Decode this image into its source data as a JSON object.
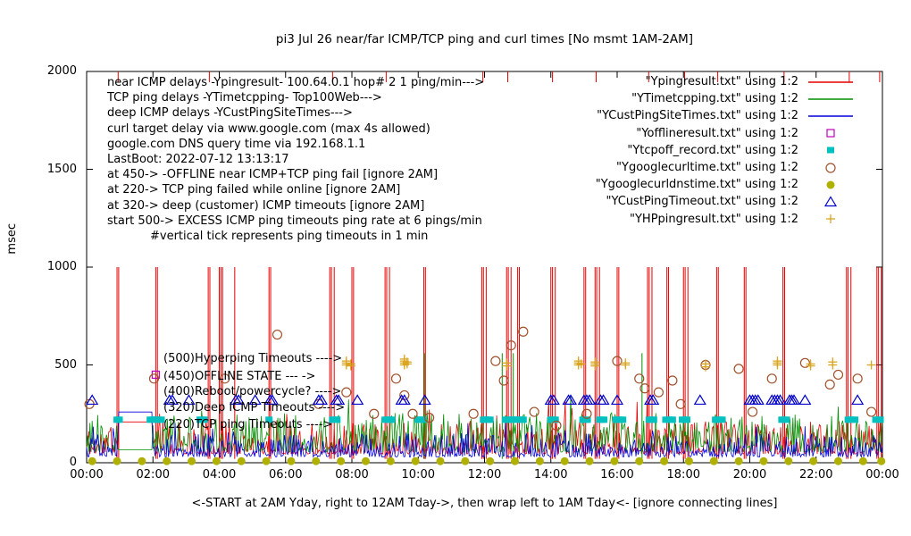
{
  "chart_data": {
    "type": "line",
    "title": "pi3 Jul 26  near/far ICMP/TCP ping and curl times [No msmt 1AM-2AM]",
    "ylabel": "msec",
    "xlabel": "<-START at 2AM Yday, right to 12AM Tday->, then wrap left to 1AM Tday<- [ignore connecting lines]",
    "ylim": [
      0,
      2000
    ],
    "x_range_minutes": [
      0,
      1440
    ],
    "grid": "off",
    "legend_position": "top-right",
    "y_tick_labels": [
      "0",
      "500",
      "1000",
      "1500",
      "2000"
    ],
    "x_tick_labels": [
      "00:00",
      "02:00",
      "04:00",
      "06:00",
      "08:00",
      "10:00",
      "12:00",
      "14:00",
      "16:00",
      "18:00",
      "20:00",
      "22:00",
      "00:00"
    ],
    "annotations": [
      "near ICMP delays -Ypingresult- 100.64.0.1 hop# 2 1 ping/min--->",
      "TCP ping delays -YTimetcpping- Top100Web--->",
      "deep ICMP delays -YCustPingSiteTimes--->",
      "curl target delay via www.google.com (max 4s allowed)",
      "google.com DNS query time via 192.168.1.1",
      "LastBoot: 2022-07-12 13:13:17",
      "at 450-> -OFFLINE near ICMP+TCP ping fail [ignore 2AM]",
      "at 220-> TCP ping failed while online [ignore 2AM]",
      "at 320-> deep (customer) ICMP timeouts [ignore 2AM]",
      "start 500-> EXCESS ICMP ping timeouts ping rate at 6 pings/min",
      "#vertical tick represents ping timeouts in 1 min"
    ],
    "level_labels": [
      "(500)Hyperping Timeouts ---->",
      "(450)OFFLINE STATE --- ->",
      "(400)Reboot/powercycle? ---->",
      "(320)Deep ICMP Timeouts ---->",
      "(220)TCP ping Timeouts ---->"
    ],
    "no_measurement_window_minutes": [
      60,
      120
    ],
    "series": [
      {
        "name": "\"Ypingresult.txt\" using 1:2",
        "color": "#e60000",
        "style": "line",
        "gen": {
          "seed": 11,
          "base": 45,
          "noise": 170,
          "extra": 120,
          "step": 2
        },
        "spike_value": 1000,
        "spike_minutes": [
          55,
          58,
          125,
          128,
          220,
          223,
          240,
          243,
          246,
          268,
          330,
          333,
          440,
          443,
          448,
          480,
          483,
          540,
          543,
          548,
          610,
          613,
          715,
          718,
          723,
          760,
          763,
          768,
          780,
          783,
          840,
          843,
          848,
          900,
          903,
          920,
          923,
          928,
          960,
          963,
          1015,
          1018,
          1023,
          1050,
          1053,
          1080,
          1083,
          1088,
          1140,
          1143,
          1190,
          1193,
          1260,
          1263,
          1375,
          1378,
          1383,
          1430,
          1433,
          1438
        ],
        "top_tick_minutes": [
          57,
          222,
          445,
          542,
          717,
          762,
          843,
          922,
          1017,
          1082,
          1142,
          1262,
          1380,
          1435
        ]
      },
      {
        "name": "\"YTimetcpping.txt\" using 1:2",
        "color": "#009000",
        "style": "line",
        "gen": {
          "seed": 77,
          "base": 55,
          "noise": 200,
          "extra": 130,
          "step": 2
        },
        "spike_value": 560,
        "spike_minutes": [
          612,
          752,
          772,
          1005
        ]
      },
      {
        "name": "\"YCustPingSiteTimes.txt\" using 1:2",
        "color": "#0000dd",
        "style": "line",
        "gen": {
          "seed": 5,
          "base": 30,
          "noise": 120,
          "extra": 110,
          "step": 2
        }
      },
      {
        "name": "\"Yofflineresult.txt\" using 1:2",
        "color": "#c000c0",
        "style": "square-open",
        "points": [
          [
            125,
            450
          ]
        ]
      },
      {
        "name": "\"Ytcpoff_record.txt\" using 1:2",
        "color": "#00c0c0",
        "style": "square-filled",
        "level": 220,
        "minutes": [
          55,
          59,
          115,
          119,
          123,
          127,
          131,
          135,
          205,
          209,
          213,
          330,
          445,
          449,
          453,
          540,
          544,
          548,
          552,
          600,
          604,
          608,
          718,
          722,
          726,
          730,
          758,
          762,
          766,
          770,
          774,
          778,
          782,
          786,
          790,
          840,
          844,
          848,
          898,
          902,
          906,
          928,
          932,
          936,
          958,
          962,
          966,
          970,
          1018,
          1022,
          1026,
          1048,
          1052,
          1056,
          1060,
          1078,
          1082,
          1086,
          1138,
          1142,
          1146,
          1150,
          1258,
          1262,
          1266,
          1378,
          1382,
          1386,
          1390,
          1428,
          1432,
          1436
        ]
      },
      {
        "name": "\"Ygooglecurltime.txt\" using 1:2",
        "color": "#a0522d",
        "style": "circle-open",
        "points": [
          [
            5,
            300
          ],
          [
            122,
            430
          ],
          [
            250,
            430
          ],
          [
            345,
            655
          ],
          [
            420,
            300
          ],
          [
            470,
            360
          ],
          [
            520,
            250
          ],
          [
            560,
            430
          ],
          [
            575,
            345
          ],
          [
            590,
            250
          ],
          [
            620,
            230
          ],
          [
            700,
            250
          ],
          [
            740,
            520
          ],
          [
            755,
            420
          ],
          [
            768,
            600
          ],
          [
            790,
            670
          ],
          [
            810,
            260
          ],
          [
            850,
            190
          ],
          [
            905,
            250
          ],
          [
            960,
            520
          ],
          [
            1000,
            430
          ],
          [
            1010,
            380
          ],
          [
            1035,
            360
          ],
          [
            1060,
            420
          ],
          [
            1075,
            300
          ],
          [
            1120,
            500
          ],
          [
            1180,
            480
          ],
          [
            1205,
            260
          ],
          [
            1240,
            430
          ],
          [
            1300,
            510
          ],
          [
            1345,
            400
          ],
          [
            1360,
            450
          ],
          [
            1395,
            430
          ],
          [
            1420,
            260
          ]
        ]
      },
      {
        "name": "\"Ygooglecurldnstime.txt\" using 1:2",
        "color": "#b0b000",
        "style": "circle-filled",
        "level": 8,
        "minutes": [
          10,
          55,
          100,
          145,
          190,
          235,
          280,
          325,
          370,
          415,
          460,
          505,
          550,
          595,
          640,
          685,
          730,
          775,
          820,
          865,
          910,
          955,
          1000,
          1045,
          1090,
          1135,
          1180,
          1225,
          1270,
          1315,
          1360,
          1405,
          1438
        ]
      },
      {
        "name": "\"YCustPingTimeout.txt\" using 1:2",
        "color": "#0000cc",
        "style": "triangle-open",
        "level": 320,
        "minutes": [
          10,
          150,
          155,
          185,
          270,
          275,
          305,
          332,
          336,
          420,
          425,
          452,
          456,
          490,
          570,
          575,
          612,
          840,
          845,
          872,
          876,
          900,
          905,
          910,
          930,
          935,
          960,
          1020,
          1025,
          1110,
          1200,
          1205,
          1210,
          1215,
          1240,
          1245,
          1250,
          1255,
          1272,
          1276,
          1280,
          1300,
          1395
        ]
      },
      {
        "name": "\"YHPpingresult.txt\" using 1:2",
        "color": "#daa520",
        "style": "plus",
        "points": [
          [
            470,
            500
          ],
          [
            470,
            510
          ],
          [
            470,
            520
          ],
          [
            478,
            495
          ],
          [
            478,
            505
          ],
          [
            575,
            500
          ],
          [
            575,
            510
          ],
          [
            575,
            520
          ],
          [
            575,
            530
          ],
          [
            580,
            505
          ],
          [
            580,
            515
          ],
          [
            760,
            495
          ],
          [
            760,
            510
          ],
          [
            890,
            500
          ],
          [
            890,
            510
          ],
          [
            890,
            520
          ],
          [
            895,
            505
          ],
          [
            920,
            495
          ],
          [
            920,
            505
          ],
          [
            920,
            515
          ],
          [
            975,
            500
          ],
          [
            975,
            510
          ],
          [
            1120,
            490
          ],
          [
            1120,
            505
          ],
          [
            1250,
            500
          ],
          [
            1250,
            510
          ],
          [
            1250,
            520
          ],
          [
            1310,
            495
          ],
          [
            1310,
            505
          ],
          [
            1350,
            500
          ],
          [
            1350,
            515
          ],
          [
            1420,
            500
          ]
        ]
      }
    ]
  }
}
